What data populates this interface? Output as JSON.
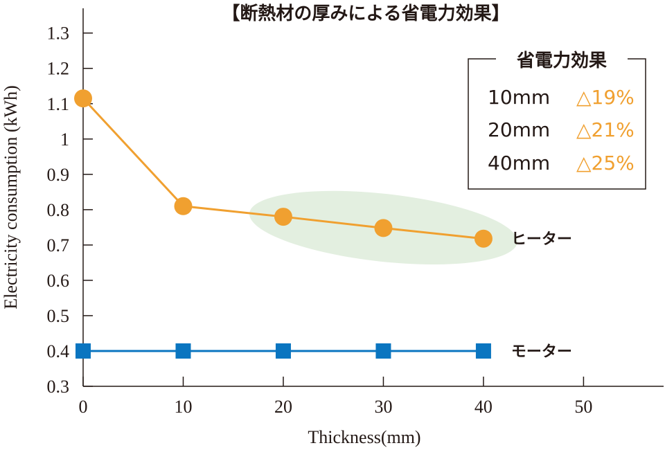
{
  "chart_data": {
    "type": "line",
    "title": "【断熱材の厚みによる省電力効果】",
    "xlabel": "Thickness(mm)",
    "ylabel": "Electricity consumption (kWh)",
    "x_ticks": [
      "0",
      "10",
      "20",
      "30",
      "40",
      "50"
    ],
    "y_ticks": [
      "0.3",
      "0.4",
      "0.5",
      "0.6",
      "0.7",
      "0.8",
      "0.9",
      "1",
      "1.1",
      "1.2",
      "1.3"
    ],
    "xlim": [
      0,
      58
    ],
    "ylim": [
      0.3,
      1.37
    ],
    "grid": false,
    "x": [
      0,
      10,
      20,
      30,
      40
    ],
    "series": [
      {
        "name": "ヒーター",
        "values": [
          1.115,
          0.81,
          0.78,
          0.748,
          0.718
        ],
        "color": "#f0a030",
        "marker": "circle"
      },
      {
        "name": "モーター",
        "values": [
          0.4,
          0.4,
          0.4,
          0.4,
          0.4
        ],
        "color": "#0a75c0",
        "marker": "square"
      }
    ],
    "highlight": {
      "color": "#e3efe0",
      "x_range": [
        20,
        40
      ]
    },
    "legend": {
      "title": "省電力効果",
      "placement": "top-right",
      "items": [
        {
          "thickness": "10mm",
          "saving": "△19%"
        },
        {
          "thickness": "20mm",
          "saving": "△21%"
        },
        {
          "thickness": "40mm",
          "saving": "△25%"
        }
      ]
    }
  }
}
